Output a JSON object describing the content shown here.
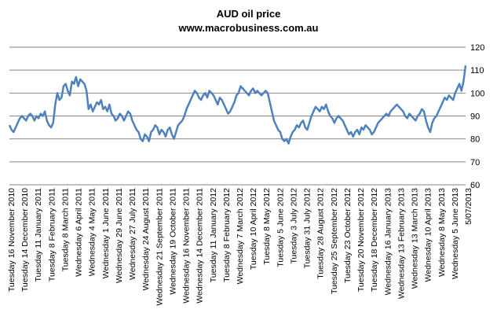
{
  "chart_data": {
    "type": "line",
    "title": "AUD oil price",
    "subtitle": "www.macrobusiness.com.au",
    "xlabel": "",
    "ylabel": "",
    "ylim": [
      60,
      120
    ],
    "yticks": [
      60,
      70,
      80,
      90,
      100,
      110,
      120
    ],
    "y_axis_side": "right",
    "grid": "horizontal",
    "legend": "none",
    "line_color": "#4f81bd",
    "x_tick_labels": [
      "Tuesday 16 November 2010",
      "Tuesday 14 December 2010",
      "Tuesday 11 January 2011",
      "Tuesday 8 February 2011",
      "Tuesday 8 March 2011",
      "Wednesday 6 April 2011",
      "Wednesday 4 May 2011",
      "Wednesday 1 June 2011",
      "Wednesday 29 June 2011",
      "Wednesday 27 July 2011",
      "Wednesday 24 August 2011",
      "Wednesday 21 September 2011",
      "Wednesday 19 October 2011",
      "Wednesday 16 November 2011",
      "Wednesday 14 December 2011",
      "Tuesday 11 January 2012",
      "Tuesday 8 February 2012",
      "Wednesday 7 March 2012",
      "Tuesday 10 April 2012",
      "Tuesday 8 May 2012",
      "Tuesday 5 June 2012",
      "Tuesday 3 July 2012",
      "Tuesday 31 July 2012",
      "Tuesday 28 August 2012",
      "Tuesday 25 September 2012",
      "Tuesday 23 October 2012",
      "Tuesday 20 November 2012",
      "Tuesday 18 December 2012",
      "Wednesday 16 January 2013",
      "Wednesday 13 February 2013",
      "Wednesday 13 March 2013",
      "Wednesday 10 April 2013",
      "Wednesday 8 May 2013",
      "Wednesday 5 June 2013",
      "5/07/2013"
    ],
    "values": [
      86,
      84,
      83,
      85,
      87,
      89,
      90,
      89,
      88,
      90,
      91,
      90,
      88,
      90,
      89,
      91,
      90,
      92,
      88,
      86,
      85,
      87,
      95,
      100,
      97,
      98,
      103,
      104,
      101,
      99,
      105,
      104,
      107,
      103,
      106,
      105,
      104,
      101,
      93,
      95,
      92,
      94,
      96,
      95,
      97,
      93,
      94,
      92,
      95,
      91,
      90,
      88,
      89,
      91,
      90,
      88,
      90,
      92,
      91,
      88,
      86,
      84,
      83,
      80,
      79,
      82,
      81,
      79,
      83,
      84,
      86,
      85,
      82,
      84,
      83,
      81,
      84,
      85,
      82,
      80,
      83,
      86,
      87,
      88,
      90,
      93,
      95,
      97,
      99,
      101,
      100,
      98,
      97,
      99,
      100,
      98,
      101,
      100,
      99,
      97,
      95,
      98,
      97,
      95,
      93,
      91,
      92,
      94,
      96,
      99,
      100,
      103,
      102,
      101,
      100,
      99,
      101,
      102,
      100,
      101,
      100,
      99,
      100,
      101,
      100,
      96,
      92,
      88,
      86,
      84,
      83,
      80,
      79,
      80,
      78,
      81,
      83,
      84,
      86,
      85,
      87,
      88,
      85,
      84,
      87,
      90,
      92,
      94,
      93,
      92,
      94,
      93,
      95,
      92,
      90,
      89,
      87,
      89,
      90,
      89,
      88,
      86,
      84,
      82,
      83,
      81,
      83,
      84,
      82,
      85,
      84,
      86,
      85,
      84,
      82,
      83,
      85,
      87,
      88,
      89,
      90,
      91,
      90,
      92,
      93,
      94,
      95,
      94,
      93,
      92,
      90,
      89,
      91,
      90,
      89,
      88,
      90,
      91,
      93,
      92,
      88,
      85,
      83,
      87,
      89,
      90,
      92,
      94,
      96,
      98,
      97,
      99,
      98,
      97,
      100,
      102,
      104,
      101,
      105,
      112
    ]
  }
}
